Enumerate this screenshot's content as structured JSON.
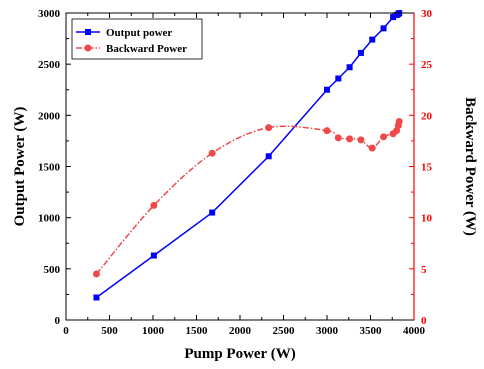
{
  "colors": {
    "output": "#0000ff",
    "backward": "#f04848",
    "right_axis": "#ff0000",
    "frame": "#000000"
  },
  "chart_data": {
    "type": "line",
    "xlabel": "Pump Power (W)",
    "ylabel_left": "Output Power (W)",
    "ylabel_right": "Backward Power (W)",
    "xlim": [
      0,
      4000
    ],
    "ylim_left": [
      0,
      3000
    ],
    "ylim_right": [
      0,
      30
    ],
    "x_ticks": [
      "0",
      "500",
      "1000",
      "1500",
      "2000",
      "2500",
      "3000",
      "3500",
      "4000"
    ],
    "y_left_ticks": [
      "0",
      "500",
      "1000",
      "1500",
      "2000",
      "2500",
      "3000"
    ],
    "y_right_ticks": [
      "0",
      "5",
      "10",
      "15",
      "20",
      "25",
      "30"
    ],
    "legend_position": "top-left",
    "grid": false,
    "series": [
      {
        "name": "Output power",
        "axis": "left",
        "marker": "square",
        "line": "solid",
        "x": [
          350,
          1010,
          1680,
          2330,
          3000,
          3130,
          3260,
          3390,
          3520,
          3650,
          3760,
          3800,
          3820,
          3830
        ],
        "y": [
          220,
          630,
          1050,
          1600,
          2250,
          2360,
          2470,
          2610,
          2740,
          2850,
          2960,
          2980,
          2990,
          3000
        ]
      },
      {
        "name": "Backward Power",
        "axis": "right",
        "marker": "circle",
        "line": "dash-dot",
        "x": [
          350,
          1010,
          1680,
          2330,
          3000,
          3130,
          3260,
          3390,
          3520,
          3650,
          3760,
          3800,
          3820,
          3830
        ],
        "y": [
          4.5,
          11.2,
          16.3,
          18.8,
          18.5,
          17.8,
          17.7,
          17.6,
          16.8,
          17.9,
          18.2,
          18.5,
          19.0,
          19.4
        ]
      }
    ]
  }
}
